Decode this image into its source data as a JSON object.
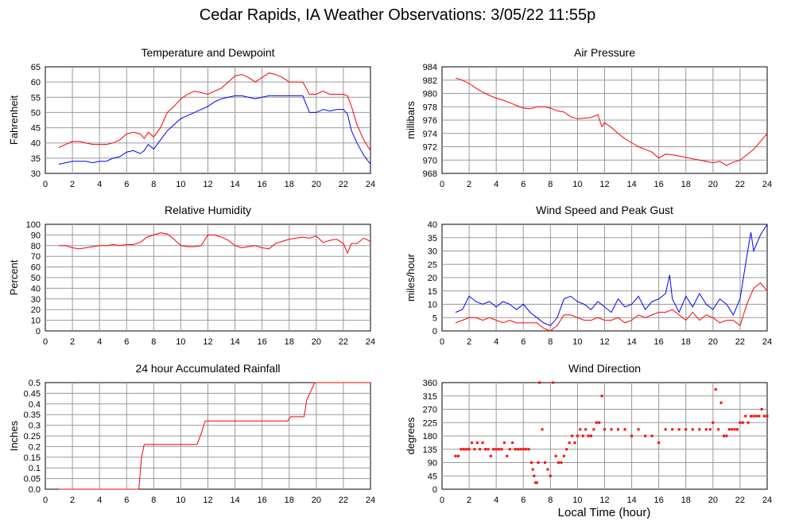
{
  "title": "Cedar Rapids, IA Weather Observations: 3/05/22 11:55p",
  "x_axis_title": "Local Time (hour)",
  "colors": {
    "red": "#ff0000",
    "blue": "#0000ff",
    "grid": "#999999"
  },
  "chart_data": [
    {
      "id": "temp",
      "type": "line",
      "title": "Temperature and Dewpoint",
      "ylabel": "Fahrenheit",
      "xlim": [
        0,
        24
      ],
      "ylim": [
        30,
        65
      ],
      "xticks": [
        2,
        4,
        6,
        8,
        10,
        12,
        14,
        16,
        18,
        20,
        22,
        24
      ],
      "yticks": [
        30,
        35,
        40,
        45,
        50,
        55,
        60,
        65
      ],
      "grid": true,
      "series": [
        {
          "color": "#ff0000",
          "x": [
            1,
            1.5,
            2,
            2.5,
            3,
            3.5,
            4,
            4.5,
            5,
            5.5,
            6,
            6.5,
            7,
            7.3,
            7.6,
            8,
            8.5,
            9,
            9.5,
            10,
            10.5,
            11,
            11.5,
            12,
            12.5,
            13,
            13.5,
            14,
            14.5,
            15,
            15.5,
            16,
            16.5,
            17,
            17.5,
            18,
            18.5,
            19,
            19.5,
            20,
            20.5,
            21,
            21.5,
            22,
            22.3,
            22.6,
            23,
            23.5,
            24
          ],
          "y": [
            38.5,
            39.5,
            40.5,
            40.5,
            40,
            39.5,
            39.5,
            39.5,
            40,
            41,
            43,
            43.5,
            43,
            41.5,
            43.5,
            42,
            45,
            50,
            52,
            54.5,
            56,
            57,
            56.5,
            56,
            57,
            58,
            60,
            62,
            62.5,
            61.5,
            60,
            61.5,
            63,
            62.5,
            61.5,
            60,
            60,
            60,
            56,
            56,
            57,
            56,
            56,
            56,
            55.5,
            52,
            46,
            41,
            37.5
          ]
        },
        {
          "color": "#0000ff",
          "x": [
            1,
            1.5,
            2,
            2.5,
            3,
            3.5,
            4,
            4.5,
            5,
            5.5,
            6,
            6.5,
            7,
            7.3,
            7.6,
            8,
            8.5,
            9,
            9.5,
            10,
            10.5,
            11,
            11.5,
            12,
            12.5,
            13,
            13.5,
            14,
            14.5,
            15,
            15.5,
            16,
            16.5,
            17,
            17.5,
            18,
            18.5,
            19,
            19.5,
            20,
            20.5,
            21,
            21.5,
            22,
            22.3,
            22.6,
            23,
            23.5,
            24
          ],
          "y": [
            33,
            33.5,
            34,
            34,
            34,
            33.5,
            34,
            34,
            35,
            35.5,
            37,
            37.5,
            36.5,
            37.5,
            39.5,
            38,
            41,
            44,
            46,
            48,
            49,
            50,
            51,
            52,
            53.5,
            54.5,
            55,
            55.5,
            55.5,
            55,
            54.5,
            55,
            55.5,
            55.5,
            55.5,
            55.5,
            55.5,
            55.5,
            50,
            50,
            51,
            50.5,
            51,
            51,
            49.5,
            44,
            40,
            36,
            33
          ]
        }
      ]
    },
    {
      "id": "pressure",
      "type": "line",
      "title": "Air Pressure",
      "ylabel": "millibars",
      "xlim": [
        0,
        24
      ],
      "ylim": [
        968,
        984
      ],
      "xticks": [
        2,
        4,
        6,
        8,
        10,
        12,
        14,
        16,
        18,
        20,
        22,
        24
      ],
      "yticks": [
        968,
        970,
        972,
        974,
        976,
        978,
        980,
        982,
        984
      ],
      "grid": true,
      "series": [
        {
          "color": "#ff0000",
          "x": [
            1,
            1.5,
            2,
            2.5,
            3,
            3.5,
            4,
            4.5,
            5,
            5.5,
            6,
            6.5,
            7,
            7.5,
            8,
            8.5,
            9,
            9.5,
            10,
            10.5,
            11,
            11.5,
            11.8,
            12,
            12.5,
            13,
            13.5,
            14,
            14.5,
            15,
            15.5,
            16,
            16.5,
            17,
            17.5,
            18,
            18.5,
            19,
            19.5,
            20,
            20.5,
            21,
            21.5,
            22,
            22.5,
            23,
            23.5,
            24
          ],
          "y": [
            982.3,
            982,
            981.5,
            980.8,
            980.2,
            979.7,
            979.3,
            979,
            978.6,
            978.2,
            977.8,
            977.7,
            978,
            978,
            977.8,
            977.4,
            977.2,
            976.5,
            976.2,
            976.3,
            976.4,
            976.8,
            975,
            975.6,
            974.9,
            974,
            973.2,
            972.6,
            972,
            971.6,
            971.2,
            970.3,
            970.9,
            970.8,
            970.6,
            970.4,
            970.2,
            970,
            969.8,
            969.6,
            969.8,
            969.2,
            969.7,
            970,
            970.8,
            971.6,
            972.8,
            974
          ]
        }
      ]
    },
    {
      "id": "humidity",
      "type": "line",
      "title": "Relative Humidity",
      "ylabel": "Percent",
      "xlim": [
        0,
        24
      ],
      "ylim": [
        0,
        100
      ],
      "xticks": [
        2,
        4,
        6,
        8,
        10,
        12,
        14,
        16,
        18,
        20,
        22,
        24
      ],
      "yticks": [
        0,
        10,
        20,
        30,
        40,
        50,
        60,
        70,
        80,
        90,
        100
      ],
      "grid": true,
      "series": [
        {
          "color": "#ff0000",
          "x": [
            1,
            1.5,
            2,
            2.5,
            3,
            3.5,
            4,
            4.5,
            5,
            5.5,
            6,
            6.5,
            7,
            7.5,
            8,
            8.5,
            9,
            9.5,
            10,
            10.5,
            11,
            11.5,
            12,
            12.5,
            13,
            13.5,
            14,
            14.5,
            15,
            15.5,
            16,
            16.5,
            17,
            17.5,
            18,
            18.5,
            19,
            19.5,
            20,
            20.5,
            21,
            21.5,
            22,
            22.3,
            22.6,
            23,
            23.5,
            24
          ],
          "y": [
            80,
            80,
            78,
            77,
            78,
            79,
            80,
            80,
            81,
            80,
            81,
            81,
            83,
            88,
            90,
            92,
            91,
            86,
            80,
            79,
            79,
            80,
            90,
            90,
            88,
            85,
            80,
            78,
            79,
            80,
            78,
            77,
            82,
            84,
            86,
            87,
            88,
            87,
            89,
            83,
            85,
            86,
            82,
            73,
            82,
            82,
            87,
            84
          ]
        }
      ]
    },
    {
      "id": "wind",
      "type": "line",
      "title": "Wind Speed and Peak Gust",
      "ylabel": "miles/hour",
      "xlim": [
        0,
        24
      ],
      "ylim": [
        0,
        40
      ],
      "xticks": [
        2,
        4,
        6,
        8,
        10,
        12,
        14,
        16,
        18,
        20,
        22,
        24
      ],
      "yticks": [
        0,
        5,
        10,
        15,
        20,
        25,
        30,
        35,
        40
      ],
      "grid": true,
      "series": [
        {
          "color": "#0000ff",
          "x": [
            1,
            1.5,
            2,
            2.5,
            3,
            3.5,
            4,
            4.5,
            5,
            5.5,
            6,
            6.5,
            7,
            7.5,
            8,
            8.5,
            9,
            9.5,
            10,
            10.5,
            11,
            11.5,
            12,
            12.5,
            13,
            13.5,
            14,
            14.5,
            15,
            15.5,
            16,
            16.5,
            16.8,
            17,
            17.5,
            18,
            18.5,
            19,
            19.5,
            20,
            20.5,
            21,
            21.5,
            22,
            22.5,
            22.8,
            23,
            23.5,
            24
          ],
          "y": [
            7,
            8,
            13,
            11,
            10,
            11,
            9,
            11,
            10,
            8,
            10,
            7,
            5,
            3,
            2,
            5,
            12,
            13,
            11,
            10,
            8,
            11,
            9,
            7,
            12,
            9,
            10,
            13,
            8,
            11,
            12,
            14,
            21,
            12,
            7,
            13,
            9,
            14,
            10,
            8,
            12,
            10,
            6,
            12,
            28,
            37,
            30,
            36,
            40
          ]
        },
        {
          "color": "#ff0000",
          "x": [
            1,
            1.5,
            2,
            2.5,
            3,
            3.5,
            4,
            4.5,
            5,
            5.5,
            6,
            6.5,
            7,
            7.5,
            8,
            8.5,
            9,
            9.5,
            10,
            10.5,
            11,
            11.5,
            12,
            12.5,
            13,
            13.5,
            14,
            14.5,
            15,
            15.5,
            16,
            16.5,
            17,
            17.5,
            18,
            18.5,
            19,
            19.5,
            20,
            20.5,
            21,
            21.5,
            22,
            22.5,
            23,
            23.5,
            24
          ],
          "y": [
            3,
            4,
            5,
            5,
            4,
            5,
            4,
            3,
            4,
            3,
            3,
            3,
            3,
            1,
            0,
            2,
            6,
            6,
            5,
            4,
            4,
            5,
            4,
            4,
            5,
            3,
            4,
            6,
            5,
            6,
            7,
            7,
            8,
            6,
            4,
            7,
            4,
            6,
            5,
            3,
            4,
            4,
            2,
            10,
            16,
            18,
            15
          ]
        }
      ]
    },
    {
      "id": "rain",
      "type": "line",
      "title": "24 hour Accumulated Rainfall",
      "ylabel": "Inches",
      "xlim": [
        0,
        24
      ],
      "ylim": [
        0,
        0.5
      ],
      "xticks": [
        2,
        4,
        6,
        8,
        10,
        12,
        14,
        16,
        18,
        20,
        22,
        24
      ],
      "yticks": [
        "0.0",
        "0.05",
        "0.1",
        "0.15",
        "0.2",
        "0.25",
        "0.3",
        "0.35",
        "0.4",
        "0.45",
        "0.5"
      ],
      "grid": true,
      "series": [
        {
          "color": "#ff0000",
          "x": [
            1,
            6.9,
            7.1,
            7.3,
            11.2,
            11.5,
            11.8,
            17.9,
            18.1,
            19.1,
            19.3,
            19.6,
            19.9,
            24
          ],
          "y": [
            0,
            0,
            0.15,
            0.21,
            0.21,
            0.26,
            0.32,
            0.32,
            0.34,
            0.34,
            0.42,
            0.46,
            0.5,
            0.5
          ]
        }
      ]
    },
    {
      "id": "direction",
      "type": "scatter",
      "title": "Wind Direction",
      "ylabel": "degrees",
      "xlim": [
        0,
        24
      ],
      "ylim": [
        0,
        360
      ],
      "xticks": [
        2,
        4,
        6,
        8,
        10,
        12,
        14,
        16,
        18,
        20,
        22,
        24
      ],
      "yticks": [
        0,
        45,
        90,
        135,
        180,
        225,
        270,
        315,
        360
      ],
      "grid": true,
      "series": [
        {
          "color": "#ff0000",
          "x": [
            1,
            1.2,
            1.4,
            1.6,
            1.8,
            2,
            2.2,
            2.4,
            2.6,
            2.8,
            3,
            3.2,
            3.4,
            3.6,
            3.8,
            4,
            4.2,
            4.4,
            4.6,
            4.8,
            5,
            5.2,
            5.4,
            5.6,
            5.8,
            6,
            6.2,
            6.4,
            6.6,
            6.7,
            6.8,
            6.9,
            7,
            7.1,
            7.2,
            7.4,
            7.6,
            7.8,
            8,
            8.2,
            8.4,
            8.6,
            8.8,
            9,
            9.2,
            9.4,
            9.6,
            9.8,
            10,
            10.2,
            10.4,
            10.6,
            10.8,
            11,
            11.2,
            11.4,
            11.6,
            11.8,
            12,
            12.5,
            13,
            13.5,
            14,
            14.5,
            15,
            15.5,
            16,
            16.5,
            17,
            17.5,
            18,
            18.5,
            19,
            19.5,
            19.8,
            20,
            20.2,
            20.4,
            20.6,
            20.8,
            21,
            21.2,
            21.4,
            21.6,
            21.8,
            22,
            22.2,
            22.4,
            22.6,
            22.8,
            23,
            23.2,
            23.4,
            23.6,
            23.8,
            24
          ],
          "y": [
            112,
            112,
            135,
            135,
            135,
            135,
            157,
            135,
            157,
            135,
            157,
            135,
            135,
            112,
            135,
            135,
            135,
            135,
            157,
            112,
            135,
            157,
            135,
            135,
            135,
            135,
            135,
            135,
            90,
            67,
            45,
            22,
            22,
            90,
            360,
            202,
            90,
            67,
            45,
            360,
            112,
            90,
            90,
            112,
            135,
            157,
            180,
            157,
            180,
            202,
            180,
            202,
            180,
            180,
            202,
            225,
            225,
            315,
            202,
            202,
            202,
            202,
            180,
            202,
            180,
            180,
            157,
            202,
            202,
            202,
            202,
            202,
            202,
            202,
            202,
            225,
            337,
            202,
            292,
            180,
            180,
            202,
            202,
            202,
            202,
            225,
            225,
            247,
            225,
            247,
            247,
            247,
            247,
            270,
            247,
            247
          ]
        }
      ]
    }
  ]
}
